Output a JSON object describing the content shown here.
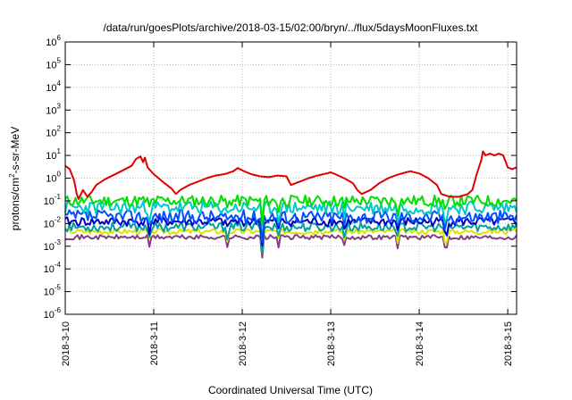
{
  "chart_data": {
    "type": "line",
    "title": "/data/run/goesPlots/archive/2018-03-15/02:00/bryn/../flux/5daysMoonFluxes.txt",
    "xlabel": "Coordinated Universal Time (UTC)",
    "ylabel": {
      "base": "protons/cm",
      "exp": "2",
      "rest": "-s-sr-MeV"
    },
    "y_scale": "log",
    "ylim": [
      1e-06,
      1000000.0
    ],
    "xlim": [
      0,
      5.1
    ],
    "grid": true,
    "x_ticks": [
      {
        "v": 0,
        "label": "2018-3-10"
      },
      {
        "v": 1,
        "label": "2018-3-11"
      },
      {
        "v": 2,
        "label": "2018-3-12"
      },
      {
        "v": 3,
        "label": "2018-3-13"
      },
      {
        "v": 4,
        "label": "2018-3-14"
      },
      {
        "v": 5,
        "label": "2018-3-15"
      }
    ],
    "y_ticks": [
      {
        "exp": -6,
        "base": "10",
        "sup": "-6"
      },
      {
        "exp": -5,
        "base": "10",
        "sup": "-5"
      },
      {
        "exp": -4,
        "base": "10",
        "sup": "-4"
      },
      {
        "exp": -3,
        "base": "10",
        "sup": "-3"
      },
      {
        "exp": -2,
        "base": "10",
        "sup": "-2"
      },
      {
        "exp": -1,
        "base": "10",
        "sup": "-1"
      },
      {
        "exp": 0,
        "base": "10",
        "sup": "0"
      },
      {
        "exp": 1,
        "base": "10",
        "sup": "1"
      },
      {
        "exp": 2,
        "base": "10",
        "sup": "2"
      },
      {
        "exp": 3,
        "base": "10",
        "sup": "3"
      },
      {
        "exp": 4,
        "base": "10",
        "sup": "4"
      },
      {
        "exp": 5,
        "base": "10",
        "sup": "5"
      },
      {
        "exp": 6,
        "base": "10",
        "sup": "6"
      }
    ],
    "series": [
      {
        "color": "#e00000",
        "points": [
          [
            0.0,
            3.5
          ],
          [
            0.05,
            2.5
          ],
          [
            0.1,
            0.8
          ],
          [
            0.13,
            0.2
          ],
          [
            0.15,
            0.12
          ],
          [
            0.2,
            0.3
          ],
          [
            0.25,
            0.15
          ],
          [
            0.3,
            0.25
          ],
          [
            0.35,
            0.5
          ],
          [
            0.45,
            0.9
          ],
          [
            0.55,
            1.4
          ],
          [
            0.65,
            2.2
          ],
          [
            0.75,
            3.5
          ],
          [
            0.8,
            7
          ],
          [
            0.85,
            9
          ],
          [
            0.88,
            5
          ],
          [
            0.9,
            8
          ],
          [
            0.93,
            3
          ],
          [
            1.0,
            1.5
          ],
          [
            1.1,
            0.7
          ],
          [
            1.2,
            0.35
          ],
          [
            1.25,
            0.2
          ],
          [
            1.3,
            0.3
          ],
          [
            1.4,
            0.5
          ],
          [
            1.5,
            0.7
          ],
          [
            1.6,
            1.0
          ],
          [
            1.7,
            1.3
          ],
          [
            1.8,
            1.5
          ],
          [
            1.9,
            2.0
          ],
          [
            1.95,
            2.8
          ],
          [
            2.0,
            2.2
          ],
          [
            2.1,
            1.5
          ],
          [
            2.2,
            1.2
          ],
          [
            2.3,
            1.1
          ],
          [
            2.4,
            1.3
          ],
          [
            2.5,
            1.2
          ],
          [
            2.55,
            0.5
          ],
          [
            2.65,
            0.7
          ],
          [
            2.75,
            1.0
          ],
          [
            2.85,
            1.3
          ],
          [
            2.95,
            1.6
          ],
          [
            3.0,
            1.8
          ],
          [
            3.05,
            1.5
          ],
          [
            3.15,
            1.0
          ],
          [
            3.25,
            0.6
          ],
          [
            3.3,
            0.3
          ],
          [
            3.35,
            0.2
          ],
          [
            3.45,
            0.3
          ],
          [
            3.55,
            0.6
          ],
          [
            3.65,
            1.0
          ],
          [
            3.75,
            1.4
          ],
          [
            3.85,
            1.8
          ],
          [
            3.9,
            2.0
          ],
          [
            4.0,
            1.6
          ],
          [
            4.1,
            1.0
          ],
          [
            4.2,
            0.5
          ],
          [
            4.25,
            0.2
          ],
          [
            4.35,
            0.15
          ],
          [
            4.45,
            0.15
          ],
          [
            4.55,
            0.2
          ],
          [
            4.6,
            0.3
          ],
          [
            4.65,
            1.5
          ],
          [
            4.7,
            6
          ],
          [
            4.72,
            15
          ],
          [
            4.75,
            10
          ],
          [
            4.8,
            12
          ],
          [
            4.85,
            10
          ],
          [
            4.9,
            12
          ],
          [
            4.95,
            10
          ],
          [
            5.0,
            3
          ],
          [
            5.05,
            2.5
          ],
          [
            5.1,
            3
          ]
        ]
      },
      {
        "color": "#00e000",
        "base": 0.1,
        "amp": 0.25,
        "seed": 11
      },
      {
        "color": "#00c8c8",
        "base": 0.05,
        "amp": 0.3,
        "seed": 23
      },
      {
        "color": "#0050ff",
        "base": 0.02,
        "amp": 0.3,
        "seed": 37
      },
      {
        "color": "#0000c0",
        "base": 0.012,
        "amp": 0.2,
        "seed": 41
      },
      {
        "color": "#00a0a0",
        "base": 0.007,
        "amp": 0.2,
        "seed": 53
      },
      {
        "color": "#e0e000",
        "base": 0.0045,
        "amp": 0.12,
        "seed": 67
      },
      {
        "color": "#804080",
        "base": 0.0025,
        "amp": 0.1,
        "seed": 71
      }
    ],
    "dips": [
      0.95,
      1.83,
      2.22,
      2.42,
      3.15,
      3.75,
      4.3
    ]
  }
}
